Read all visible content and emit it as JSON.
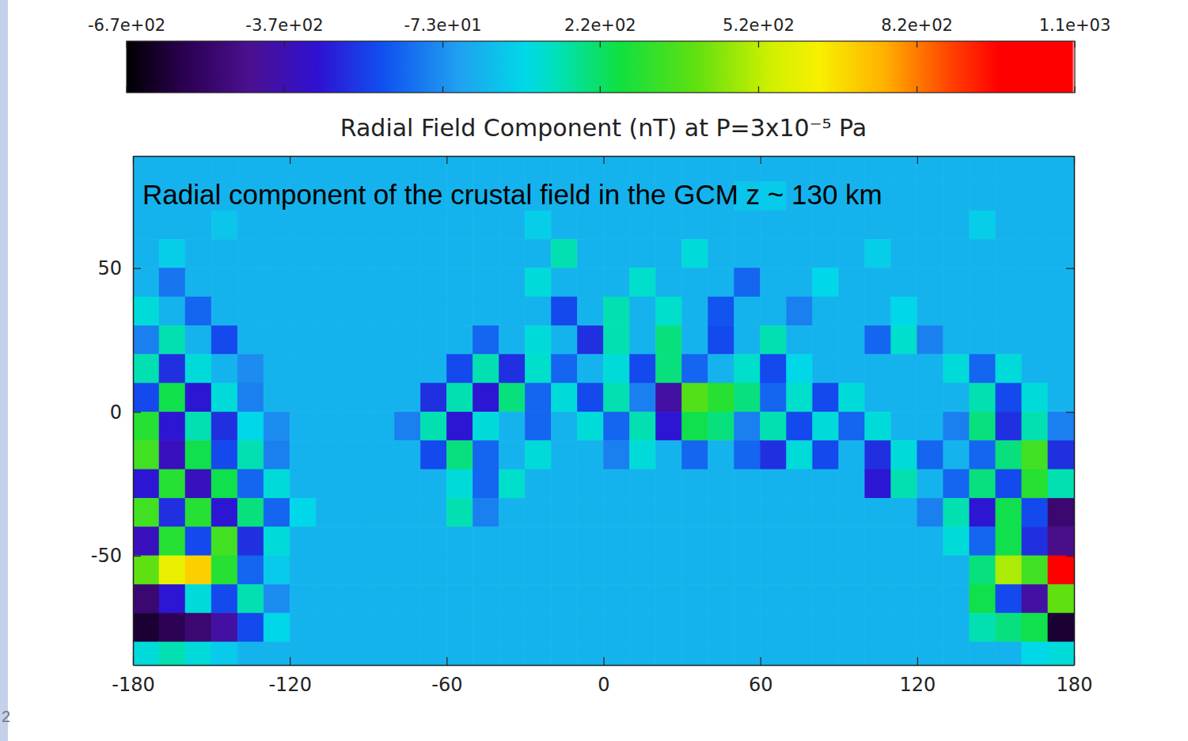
{
  "chart_data": {
    "type": "heatmap",
    "title": "Radial Field Component (nT) at P=3x10⁻⁵ Pa",
    "annotation": "Radial component of the crustal field in the GCM z ~ 130 km",
    "x": [
      -175,
      -165,
      -155,
      -145,
      -135,
      -125,
      -115,
      -105,
      -95,
      -85,
      -75,
      -65,
      -55,
      -45,
      -35,
      -25,
      -15,
      -5,
      5,
      15,
      25,
      35,
      45,
      55,
      65,
      75,
      85,
      95,
      105,
      115,
      125,
      135,
      145,
      155,
      165,
      175
    ],
    "y": [
      85,
      75,
      65,
      55,
      45,
      35,
      25,
      15,
      5,
      -5,
      -15,
      -25,
      -35,
      -45,
      -55,
      -65,
      -75,
      -85
    ],
    "z": [
      [
        0,
        0,
        0,
        0,
        0,
        0,
        0,
        0,
        0,
        0,
        0,
        0,
        0,
        0,
        0,
        0,
        0,
        0,
        0,
        0,
        0,
        0,
        0,
        0,
        0,
        0,
        0,
        0,
        0,
        0,
        0,
        0,
        0,
        0,
        0,
        0
      ],
      [
        0,
        0,
        0,
        0,
        0,
        0,
        0,
        0,
        0,
        0,
        0,
        0,
        0,
        0,
        0,
        0,
        0,
        0,
        0,
        0,
        0,
        0,
        0,
        40,
        50,
        0,
        0,
        0,
        0,
        0,
        0,
        0,
        0,
        0,
        0,
        0
      ],
      [
        0,
        0,
        0,
        40,
        0,
        0,
        0,
        0,
        0,
        0,
        0,
        0,
        0,
        0,
        0,
        60,
        0,
        0,
        0,
        0,
        0,
        0,
        0,
        0,
        0,
        0,
        0,
        0,
        0,
        0,
        0,
        0,
        60,
        0,
        0,
        0
      ],
      [
        0,
        60,
        0,
        0,
        0,
        0,
        0,
        0,
        0,
        0,
        0,
        0,
        0,
        0,
        0,
        0,
        150,
        0,
        0,
        0,
        0,
        100,
        0,
        0,
        0,
        0,
        0,
        0,
        60,
        0,
        0,
        0,
        0,
        0,
        0,
        0
      ],
      [
        0,
        -120,
        0,
        0,
        0,
        0,
        0,
        0,
        0,
        0,
        0,
        0,
        0,
        0,
        0,
        100,
        0,
        0,
        0,
        120,
        0,
        0,
        0,
        -150,
        0,
        0,
        80,
        0,
        0,
        0,
        0,
        0,
        0,
        0,
        0,
        0
      ],
      [
        100,
        0,
        -150,
        0,
        0,
        0,
        0,
        0,
        0,
        0,
        0,
        0,
        0,
        0,
        0,
        0,
        -200,
        0,
        150,
        0,
        120,
        0,
        -180,
        0,
        0,
        -100,
        0,
        0,
        0,
        80,
        0,
        0,
        0,
        0,
        0,
        0
      ],
      [
        -100,
        150,
        0,
        -200,
        0,
        0,
        0,
        0,
        0,
        0,
        0,
        0,
        0,
        -150,
        0,
        100,
        0,
        -250,
        150,
        0,
        200,
        0,
        -200,
        0,
        150,
        0,
        0,
        0,
        -150,
        120,
        -100,
        0,
        0,
        0,
        0,
        0
      ],
      [
        150,
        -250,
        100,
        0,
        -80,
        0,
        0,
        0,
        0,
        0,
        0,
        0,
        -200,
        150,
        -250,
        120,
        -150,
        0,
        100,
        -200,
        200,
        -150,
        0,
        120,
        -200,
        80,
        0,
        0,
        0,
        0,
        0,
        100,
        -150,
        100,
        0,
        0
      ],
      [
        -200,
        250,
        -300,
        100,
        -100,
        0,
        0,
        0,
        0,
        0,
        0,
        -250,
        150,
        -300,
        200,
        -150,
        100,
        -200,
        150,
        -100,
        -400,
        380,
        300,
        200,
        -150,
        120,
        -200,
        100,
        0,
        0,
        0,
        0,
        150,
        -200,
        100,
        0
      ],
      [
        300,
        -300,
        150,
        -250,
        80,
        -80,
        0,
        0,
        0,
        0,
        -100,
        150,
        -300,
        100,
        0,
        -150,
        0,
        100,
        -150,
        150,
        -300,
        250,
        200,
        -100,
        150,
        -200,
        100,
        -150,
        100,
        0,
        0,
        -100,
        200,
        -250,
        150,
        -100
      ],
      [
        350,
        -350,
        250,
        -200,
        150,
        -100,
        0,
        0,
        0,
        0,
        0,
        -200,
        200,
        -150,
        0,
        100,
        0,
        0,
        -100,
        100,
        0,
        -150,
        0,
        -150,
        -250,
        100,
        -200,
        0,
        -250,
        100,
        -150,
        0,
        -150,
        200,
        350,
        -250
      ],
      [
        -300,
        300,
        -350,
        250,
        -150,
        100,
        0,
        0,
        0,
        0,
        0,
        0,
        100,
        -150,
        120,
        0,
        0,
        0,
        0,
        0,
        0,
        0,
        0,
        0,
        0,
        0,
        0,
        0,
        -300,
        150,
        0,
        -150,
        200,
        -200,
        300,
        150
      ],
      [
        350,
        -250,
        300,
        -300,
        200,
        -150,
        80,
        0,
        0,
        0,
        0,
        0,
        150,
        -100,
        0,
        0,
        0,
        0,
        0,
        0,
        0,
        0,
        0,
        0,
        0,
        0,
        0,
        0,
        0,
        0,
        -100,
        150,
        -300,
        250,
        -200,
        -500
      ],
      [
        -350,
        300,
        -200,
        350,
        -250,
        100,
        0,
        0,
        0,
        0,
        0,
        0,
        0,
        0,
        0,
        0,
        0,
        0,
        0,
        0,
        0,
        0,
        0,
        0,
        0,
        0,
        0,
        0,
        0,
        0,
        0,
        100,
        -150,
        250,
        -250,
        -450
      ],
      [
        400,
        600,
        700,
        300,
        -150,
        50,
        0,
        0,
        0,
        0,
        0,
        0,
        0,
        0,
        0,
        0,
        0,
        0,
        0,
        0,
        0,
        0,
        0,
        0,
        0,
        0,
        0,
        0,
        0,
        0,
        0,
        0,
        200,
        500,
        350,
        1000
      ],
      [
        -500,
        -300,
        100,
        -200,
        150,
        -80,
        0,
        0,
        0,
        0,
        0,
        0,
        0,
        0,
        0,
        0,
        0,
        0,
        0,
        0,
        0,
        0,
        0,
        0,
        0,
        0,
        0,
        0,
        0,
        0,
        0,
        0,
        250,
        -200,
        -400,
        400
      ],
      [
        -600,
        -550,
        -500,
        -400,
        -200,
        80,
        0,
        0,
        0,
        0,
        0,
        0,
        0,
        0,
        0,
        0,
        0,
        0,
        0,
        0,
        0,
        0,
        0,
        0,
        0,
        0,
        0,
        0,
        0,
        0,
        0,
        0,
        150,
        200,
        250,
        -600
      ],
      [
        100,
        150,
        100,
        50,
        0,
        0,
        0,
        0,
        0,
        0,
        0,
        0,
        0,
        0,
        0,
        0,
        0,
        0,
        0,
        0,
        0,
        0,
        0,
        0,
        0,
        0,
        0,
        0,
        0,
        0,
        0,
        0,
        0,
        0,
        80,
        100
      ]
    ],
    "xlim": [
      -180,
      180
    ],
    "ylim": [
      -88,
      89
    ],
    "xticks": [
      -180,
      -120,
      -60,
      0,
      60,
      120,
      180
    ],
    "yticks": [
      -50,
      0,
      50
    ],
    "colorbar": {
      "range": [
        -670,
        1120
      ],
      "ticks": [
        {
          "value": -670,
          "label": "-6.7e+02"
        },
        {
          "value": -372,
          "label": "-3.7e+02"
        },
        {
          "value": -73,
          "label": "-7.3e+01"
        },
        {
          "value": 224,
          "label": "2.2e+02"
        },
        {
          "value": 523,
          "label": "5.2e+02"
        },
        {
          "value": 822,
          "label": "8.2e+02"
        },
        {
          "value": 1120,
          "label": "1.1e+03"
        }
      ]
    }
  },
  "page_number": "2"
}
